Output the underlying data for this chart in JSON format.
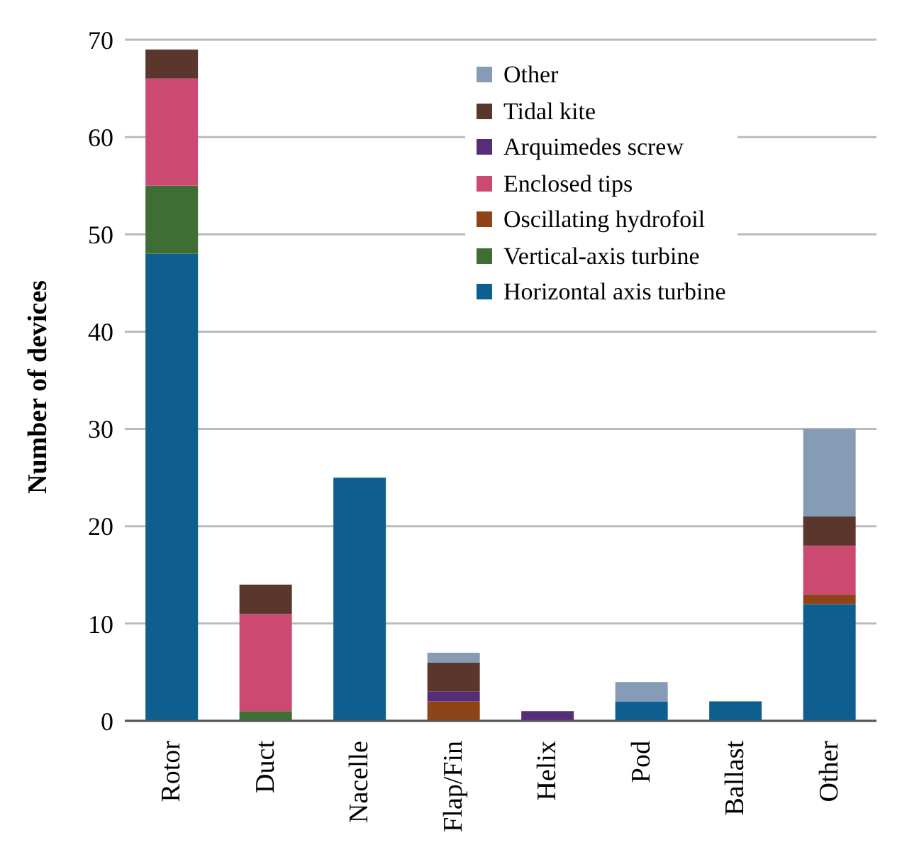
{
  "chart_data": {
    "type": "bar",
    "stacked": true,
    "ylabel": "Number of devices",
    "categories": [
      "Rotor",
      "Duct",
      "Nacelle",
      "Flap/Fin",
      "Helix",
      "Pod",
      "Ballast",
      "Other"
    ],
    "series": [
      {
        "name": "Horizontal axis turbine",
        "color": "#0e5f8f",
        "values": [
          48,
          0,
          25,
          0,
          0,
          2,
          2,
          12
        ]
      },
      {
        "name": "Vertical-axis turbine",
        "color": "#3f6e34",
        "values": [
          7,
          1,
          0,
          0,
          0,
          0,
          0,
          0
        ]
      },
      {
        "name": "Oscillating hydrofoil",
        "color": "#8e4319",
        "values": [
          0,
          0,
          0,
          2,
          0,
          0,
          0,
          1
        ]
      },
      {
        "name": "Enclosed tips",
        "color": "#cc4a72",
        "values": [
          11,
          10,
          0,
          0,
          0,
          0,
          0,
          5
        ]
      },
      {
        "name": "Arquimedes screw",
        "color": "#562e78",
        "values": [
          0,
          0,
          0,
          1,
          1,
          0,
          0,
          0
        ]
      },
      {
        "name": "Tidal kite",
        "color": "#5b362d",
        "values": [
          3,
          3,
          0,
          3,
          0,
          0,
          0,
          3
        ]
      },
      {
        "name": "Other",
        "color": "#869cb6",
        "values": [
          0,
          0,
          0,
          1,
          0,
          2,
          0,
          9
        ]
      }
    ],
    "ylim": [
      0,
      70
    ],
    "yticks": [
      0,
      10,
      20,
      30,
      40,
      50,
      60,
      70
    ],
    "grid": "y",
    "legend": "top right"
  }
}
